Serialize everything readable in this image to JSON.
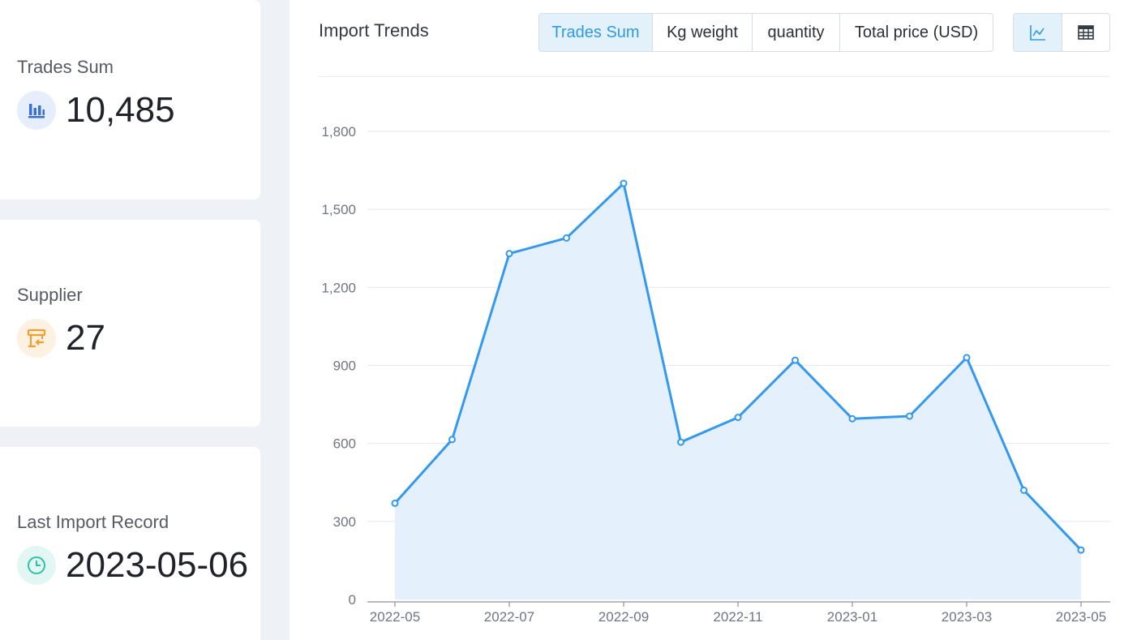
{
  "stats": {
    "trades_sum": {
      "label": "Trades Sum",
      "value": "10,485",
      "icon": "bar-chart-icon",
      "icon_bg": "#e6eefb",
      "icon_color": "#3a6fd8"
    },
    "supplier": {
      "label": "Supplier",
      "value": "27",
      "icon": "storefront-icon",
      "icon_bg": "#fdf1e1",
      "icon_color": "#f0a030"
    },
    "last_import": {
      "label": "Last Import Record",
      "value": "2023-05-06",
      "icon": "clock-icon",
      "icon_bg": "#e2f7f3",
      "icon_color": "#2cc2a8"
    }
  },
  "panel": {
    "title": "Import Trends",
    "metric_tabs": [
      {
        "label": "Trades Sum",
        "active": true
      },
      {
        "label": "Kg weight",
        "active": false
      },
      {
        "label": "quantity",
        "active": false
      },
      {
        "label": "Total price (USD)",
        "active": false
      }
    ],
    "view_toggle": {
      "line_icon": "line-chart-icon",
      "table_icon": "table-icon",
      "active": "line"
    }
  },
  "colors": {
    "accent": "#2f9ae6",
    "line": "#3399f0",
    "area": "#e4f1fd",
    "grid": "#e3e8ef"
  },
  "chart_data": {
    "type": "area",
    "x": [
      "2022-05",
      "2022-06",
      "2022-07",
      "2022-08",
      "2022-09",
      "2022-10",
      "2022-11",
      "2022-12",
      "2023-01",
      "2023-02",
      "2023-03",
      "2023-04",
      "2023-05"
    ],
    "values": [
      370,
      615,
      1330,
      1390,
      1600,
      605,
      700,
      920,
      695,
      705,
      930,
      420,
      190
    ],
    "x_tick_labels": [
      "2022-05",
      "2022-07",
      "2022-09",
      "2022-11",
      "2023-01",
      "2023-03",
      "2023-05"
    ],
    "y_ticks": [
      0,
      300,
      600,
      900,
      1200,
      1500,
      1800
    ],
    "y_tick_labels": [
      "0",
      "300",
      "600",
      "900",
      "1,200",
      "1,500",
      "1,800"
    ],
    "ylim": [
      0,
      1800
    ],
    "grid": true,
    "legend": "none"
  }
}
